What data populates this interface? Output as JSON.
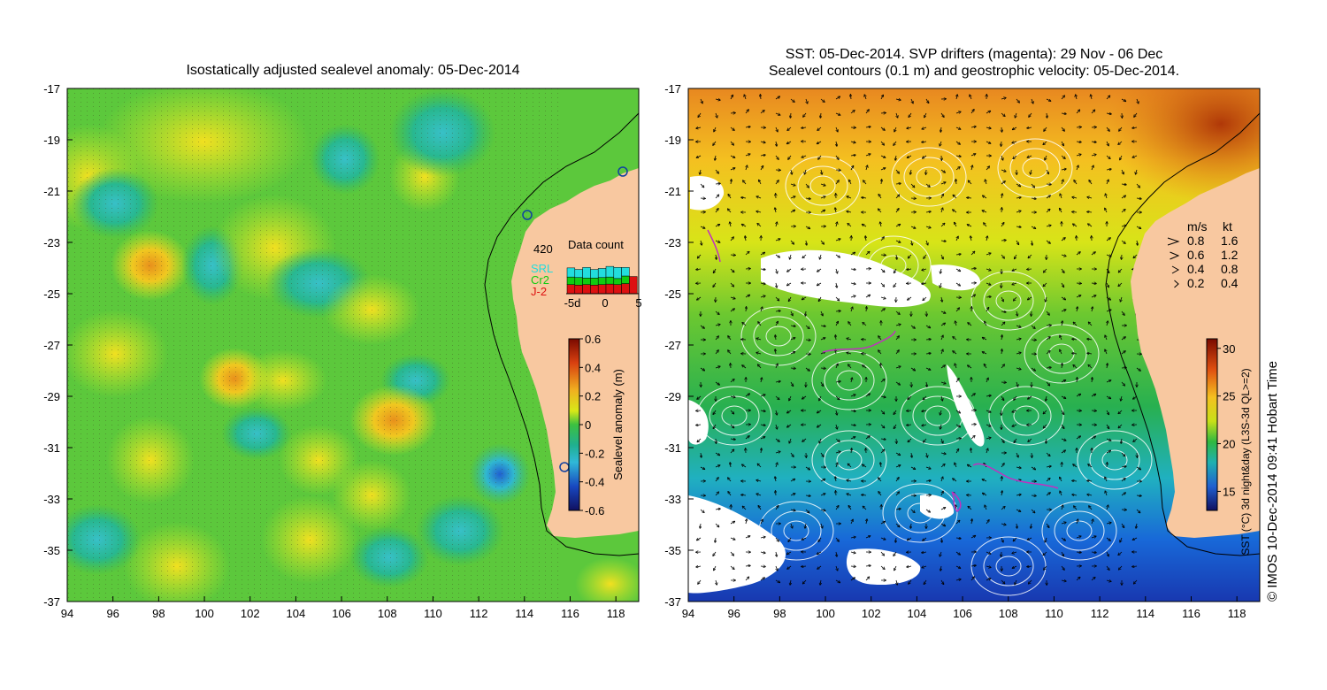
{
  "left_panel": {
    "title": "Isostatically adjusted sealevel anomaly: 05-Dec-2014",
    "x_ticks": [
      "94",
      "96",
      "98",
      "100",
      "102",
      "104",
      "106",
      "108",
      "110",
      "112",
      "114",
      "116",
      "118"
    ],
    "y_ticks": [
      "-17",
      "-19",
      "-21",
      "-23",
      "-25",
      "-27",
      "-29",
      "-31",
      "-33",
      "-35",
      "-37"
    ],
    "colorbar": {
      "label": "Sealevel anomaly (m)",
      "ticks": [
        "0.6",
        "0.4",
        "0.2",
        "0",
        "-0.2",
        "-0.4",
        "-0.6"
      ],
      "range": [
        -0.6,
        0.6
      ]
    },
    "data_count": {
      "title": "Data count",
      "max_label": "420",
      "x_ticks": [
        "-5d",
        "0",
        "5"
      ],
      "legend": [
        {
          "name": "SRL",
          "color": "#22dddd"
        },
        {
          "name": "Cr2",
          "color": "#11cc11"
        },
        {
          "name": "J-2",
          "color": "#dd1111"
        }
      ],
      "bars": [
        {
          "j2": 90,
          "cr2": 75,
          "srl": 90
        },
        {
          "j2": 85,
          "cr2": 75,
          "srl": 80
        },
        {
          "j2": 90,
          "cr2": 65,
          "srl": 105
        },
        {
          "j2": 85,
          "cr2": 70,
          "srl": 85
        },
        {
          "j2": 90,
          "cr2": 70,
          "srl": 90
        },
        {
          "j2": 95,
          "cr2": 70,
          "srl": 105
        },
        {
          "j2": 90,
          "cr2": 60,
          "srl": 110
        },
        {
          "j2": 100,
          "cr2": 75,
          "srl": 85
        },
        {
          "j2": 170,
          "cr2": 0,
          "srl": 0
        }
      ]
    }
  },
  "right_panel": {
    "title_line1": "SST: 05-Dec-2014. SVP drifters (magenta): 29 Nov - 06 Dec",
    "title_line2": "Sealevel contours (0.1 m) and geostrophic velocity: 05-Dec-2014.",
    "x_ticks": [
      "94",
      "96",
      "98",
      "100",
      "102",
      "104",
      "106",
      "108",
      "110",
      "112",
      "114",
      "116",
      "118"
    ],
    "y_ticks": [
      "-17",
      "-19",
      "-21",
      "-23",
      "-25",
      "-27",
      "-29",
      "-31",
      "-33",
      "-35",
      "-37"
    ],
    "velocity_legend": {
      "header_ms": "m/s",
      "header_kt": "kt",
      "rows": [
        {
          "ms": "0.8",
          "kt": "1.6"
        },
        {
          "ms": "0.6",
          "kt": "1.2"
        },
        {
          "ms": "0.4",
          "kt": "0.8"
        },
        {
          "ms": "0.2",
          "kt": "0.4"
        }
      ]
    },
    "colorbar": {
      "label": "SST (°C) 3d night&day (L3S-3d QL>=2)",
      "ticks": [
        "30",
        "25",
        "20",
        "15"
      ],
      "range": [
        13,
        31
      ]
    }
  },
  "credit": "© IMOS 10-Dec-2014 09:41 Hobart Time",
  "colors": {
    "land": "#f8c8a0",
    "coast": "#000000"
  }
}
